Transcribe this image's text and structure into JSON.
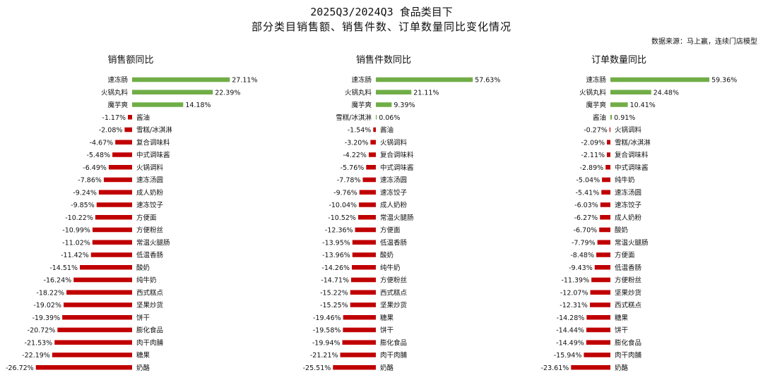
{
  "header": {
    "title_line1": "2025Q3/2024Q3 食品类目下",
    "title_line2": "部分类目销售额、销售件数、订单数量同比变化情况",
    "source": "数据来源：马上赢，连续门店模型"
  },
  "colors": {
    "positive": "#70ad47",
    "negative": "#c00000"
  },
  "chart_data": [
    {
      "type": "bar",
      "orientation": "horizontal",
      "title": "销售额同比",
      "unit": "%",
      "categories": [
        "速冻肠",
        "火锅丸料",
        "魔芋爽",
        "酱油",
        "雪糕/冰淇淋",
        "复合调味料",
        "中式调味酱",
        "火锅调料",
        "速冻汤圆",
        "成人奶粉",
        "速冻饺子",
        "方便面",
        "方便粉丝",
        "常温火腿肠",
        "低温香肠",
        "酸奶",
        "纯牛奶",
        "西式糕点",
        "坚果炒货",
        "饼干",
        "膨化食品",
        "肉干肉脯",
        "糖果",
        "奶酪"
      ],
      "values": [
        27.11,
        22.39,
        14.18,
        -1.17,
        -2.08,
        -4.67,
        -5.48,
        -6.49,
        -7.86,
        -9.24,
        -9.85,
        -10.22,
        -10.99,
        -11.02,
        -11.42,
        -14.51,
        -16.24,
        -18.22,
        -19.02,
        -19.39,
        -20.72,
        -21.53,
        -22.19,
        -26.72
      ],
      "labels": [
        "27.11%",
        "22.39%",
        "14.18%",
        "-1.17%",
        "-2.08%",
        "-4.67%",
        "-5.48%",
        "-6.49%",
        "-7.86%",
        "-9.24%",
        "-9.85%",
        "-10.22%",
        "-10.99%",
        "-11.02%",
        "-11.42%",
        "-14.51%",
        "-16.24%",
        "-18.22%",
        "-19.02%",
        "-19.39%",
        "-20.72%",
        "-21.53%",
        "-22.19%",
        "-26.72%"
      ]
    },
    {
      "type": "bar",
      "orientation": "horizontal",
      "title": "销售件数同比",
      "unit": "%",
      "categories": [
        "速冻肠",
        "火锅丸料",
        "魔芋爽",
        "雪糕/冰淇淋",
        "酱油",
        "火锅调料",
        "复合调味料",
        "中式调味酱",
        "速冻汤圆",
        "速冻饺子",
        "成人奶粉",
        "常温火腿肠",
        "方便面",
        "低温香肠",
        "酸奶",
        "纯牛奶",
        "方便粉丝",
        "西式糕点",
        "坚果炒货",
        "糖果",
        "饼干",
        "膨化食品",
        "肉干肉脯",
        "奶酪"
      ],
      "values": [
        57.63,
        21.11,
        9.39,
        0.06,
        -1.54,
        -3.2,
        -4.22,
        -5.76,
        -7.78,
        -9.76,
        -10.04,
        -10.52,
        -12.36,
        -13.95,
        -13.96,
        -14.26,
        -14.71,
        -15.22,
        -15.25,
        -19.46,
        -19.58,
        -19.94,
        -21.21,
        -25.51
      ],
      "labels": [
        "57.63%",
        "21.11%",
        "9.39%",
        "0.06%",
        "-1.54%",
        "-3.20%",
        "-4.22%",
        "-5.76%",
        "-7.78%",
        "-9.76%",
        "-10.04%",
        "-10.52%",
        "-12.36%",
        "-13.95%",
        "-13.96%",
        "-14.26%",
        "-14.71%",
        "-15.22%",
        "-15.25%",
        "-19.46%",
        "-19.58%",
        "-19.94%",
        "-21.21%",
        "-25.51%"
      ]
    },
    {
      "type": "bar",
      "orientation": "horizontal",
      "title": "订单数量同比",
      "unit": "%",
      "categories": [
        "速冻肠",
        "火锅丸料",
        "魔芋爽",
        "酱油",
        "火锅调料",
        "雪糕/冰淇淋",
        "复合调味料",
        "中式调味酱",
        "纯牛奶",
        "速冻汤圆",
        "速冻饺子",
        "成人奶粉",
        "酸奶",
        "常温火腿肠",
        "方便面",
        "低温香肠",
        "方便粉丝",
        "坚果炒货",
        "西式糕点",
        "糖果",
        "饼干",
        "膨化食品",
        "肉干肉脯",
        "奶酪"
      ],
      "values": [
        59.36,
        24.48,
        10.41,
        0.91,
        -0.27,
        -2.09,
        -2.11,
        -2.89,
        -5.04,
        -5.41,
        -6.03,
        -6.27,
        -6.7,
        -7.79,
        -8.48,
        -9.43,
        -11.39,
        -12.07,
        -12.31,
        -14.28,
        -14.44,
        -14.49,
        -15.94,
        -23.61
      ],
      "labels": [
        "59.36%",
        "24.48%",
        "10.41%",
        "0.91%",
        "-0.27%",
        "-2.09%",
        "-2.11%",
        "-2.89%",
        "-5.04%",
        "-5.41%",
        "-6.03%",
        "-6.27%",
        "-6.70%",
        "-7.79%",
        "-8.48%",
        "-9.43%",
        "-11.39%",
        "-12.07%",
        "-12.31%",
        "-14.28%",
        "-14.44%",
        "-14.49%",
        "-15.94%",
        "-23.61%"
      ]
    }
  ]
}
